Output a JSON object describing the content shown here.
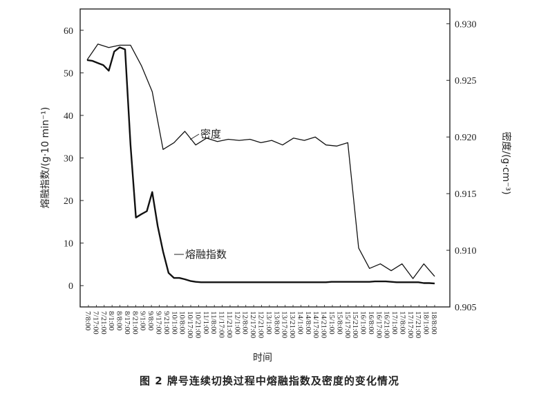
{
  "caption": "图 2   牌号连续切换过程中熔融指数及密度的变化情况",
  "chart_data": {
    "type": "line",
    "xlabel": "时间",
    "ylabel_left": "熔融指数/(g·10 min⁻¹)",
    "ylabel_right": "密度/(g·cm⁻³)",
    "y_left_lim": [
      -5,
      65
    ],
    "y_left_ticks": [
      0,
      10,
      20,
      30,
      40,
      50,
      60
    ],
    "y_right_lim": [
      0.905,
      0.9313
    ],
    "y_right_ticks": [
      "0.905",
      "0.910",
      "0.915",
      "0.920",
      "0.925",
      "0.930"
    ],
    "categories": [
      "7/8:00",
      "7/17:00",
      "7/21:00",
      "8/1:00",
      "8/8:00",
      "8/17:00",
      "8/21:00",
      "9/1:00",
      "9/8:00",
      "9/17:00",
      "9/21:00",
      "10/1:00",
      "10/8:00",
      "10/17:00",
      "10/21:00",
      "11/1:00",
      "11/8:00",
      "11/17:00",
      "11/21:00",
      "12/1:00",
      "12/8:00",
      "12/17:00",
      "12/21:00",
      "13/1:00",
      "13/8:00",
      "13/17:00",
      "13/21:00",
      "14/1:00",
      "14/8:00",
      "14/17:00",
      "14/21:00",
      "15/1:00",
      "15/8:00",
      "15/17:00",
      "15/21:00",
      "16/1:00",
      "16/8:00",
      "16/17:00",
      "16/21:00",
      "17/1:00",
      "17/8:00",
      "17/17:00",
      "17/21:00",
      "18/1:00",
      "18/8:00"
    ],
    "series": [
      {
        "name": "熔融指数",
        "axis": "left",
        "x": [
          0,
          1,
          2,
          3,
          4,
          5,
          6,
          7,
          8,
          9,
          10,
          11,
          12,
          13,
          14,
          15,
          16,
          17,
          18,
          19,
          20,
          21,
          22,
          23,
          24,
          25,
          26,
          27,
          28,
          29,
          30,
          31,
          32,
          33,
          34,
          35,
          36,
          37,
          38,
          39,
          40,
          41,
          42,
          43,
          44,
          45,
          46,
          47,
          48,
          49,
          50,
          51,
          52,
          53,
          54,
          55,
          56,
          57,
          58,
          59,
          60,
          61,
          62,
          63,
          64
        ],
        "values": [
          53,
          52.8,
          52.3,
          51.8,
          50.5,
          55,
          56,
          55.5,
          33,
          16,
          16.8,
          17.5,
          22,
          14,
          8,
          3,
          1.8,
          1.8,
          1.5,
          1.1,
          0.9,
          0.8,
          0.8,
          0.8,
          0.8,
          0.8,
          0.8,
          0.8,
          0.8,
          0.8,
          0.8,
          0.8,
          0.8,
          0.8,
          0.8,
          0.8,
          0.8,
          0.8,
          0.8,
          0.8,
          0.8,
          0.8,
          0.8,
          0.8,
          0.8,
          0.9,
          0.9,
          0.9,
          0.9,
          0.9,
          0.9,
          0.9,
          0.9,
          1,
          1,
          1,
          0.9,
          0.8,
          0.8,
          0.8,
          0.8,
          0.8,
          0.6,
          0.6,
          0.5
        ]
      },
      {
        "name": "密度",
        "axis": "right",
        "x": [
          0,
          2,
          4,
          6,
          8,
          10,
          12,
          14,
          16,
          18,
          20,
          22,
          24,
          26,
          28,
          30,
          32,
          34,
          36,
          38,
          40,
          42,
          44,
          46,
          48,
          50,
          52,
          54,
          56,
          58,
          60,
          62,
          64
        ],
        "values": [
          0.9268,
          0.9282,
          0.9279,
          0.9281,
          0.9281,
          0.9263,
          0.924,
          0.9189,
          0.9195,
          0.9205,
          0.9193,
          0.9199,
          0.9196,
          0.9198,
          0.9197,
          0.9198,
          0.9195,
          0.9197,
          0.9193,
          0.9199,
          0.9197,
          0.92,
          0.9193,
          0.9192,
          0.9195,
          0.9102,
          0.9084,
          0.9088,
          0.9082,
          0.9088,
          0.9075,
          0.9088,
          0.9077
        ]
      }
    ],
    "annotations": [
      "密度",
      "熔融指数"
    ]
  }
}
